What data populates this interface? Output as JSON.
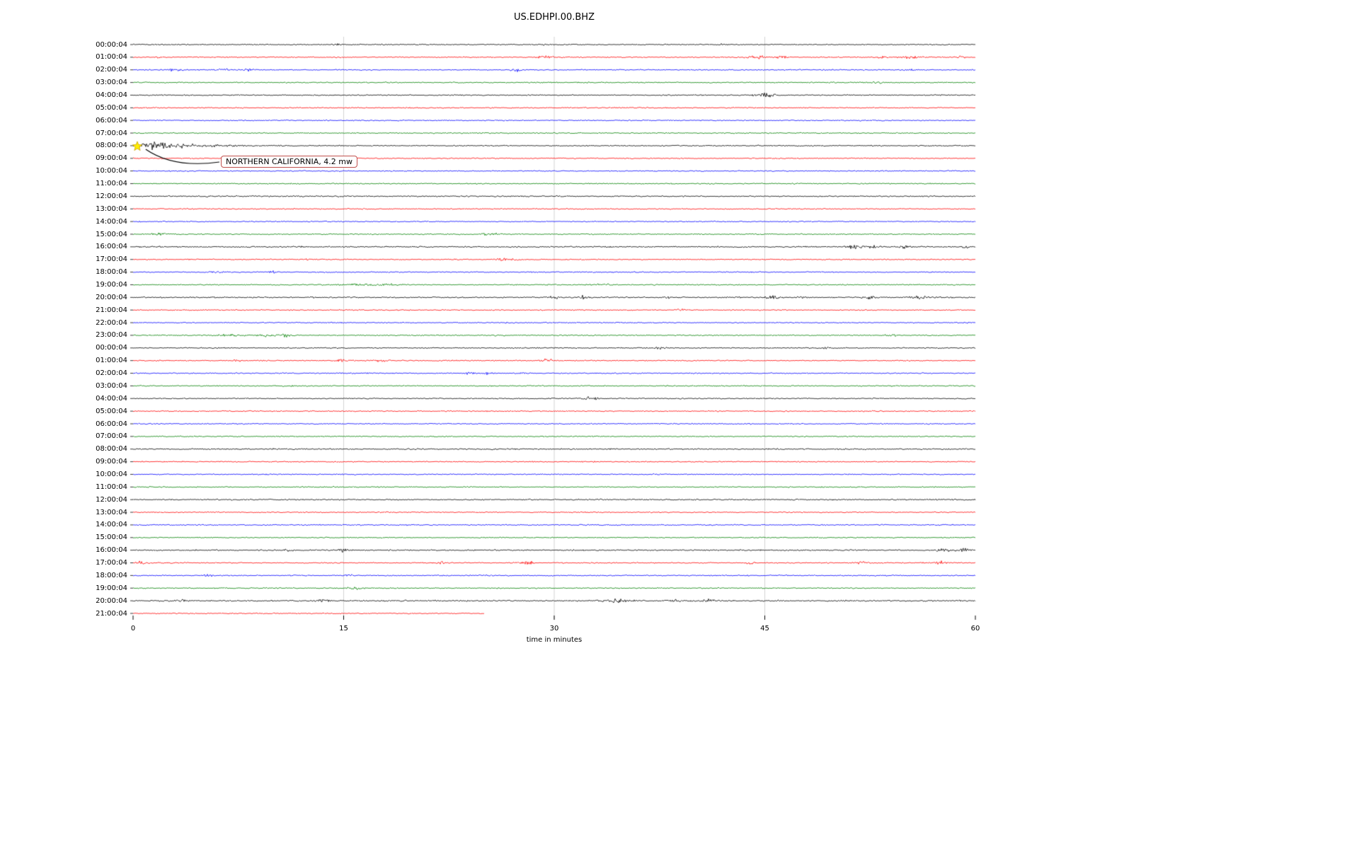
{
  "chart_data": {
    "type": "line",
    "title": "US.EDHPI.00.BHZ",
    "xlabel": "time in minutes",
    "ylabel": "",
    "xlim": [
      0,
      60
    ],
    "x_ticks": [
      "0",
      "15",
      "30",
      "45",
      "60"
    ],
    "x_tick_minutes": [
      0,
      15,
      30,
      45,
      60
    ],
    "grid_minutes": [
      15,
      30,
      45
    ],
    "grid_color": "#c8c8c8",
    "trace_color_cycle": [
      "#000000",
      "#ff0000",
      "#0000ff",
      "#008000"
    ],
    "annotation": {
      "text": "NORTHERN CALIFORNIA, 4.2 mw",
      "row_label": "08:00:04",
      "row_index": 8,
      "minute": 0.7,
      "marker_color": "#ffee00",
      "box_border_color": "#c0504d",
      "arrow_color": "#000000"
    },
    "rows": [
      {
        "label": "00:00:04",
        "events": [
          [
            14.5,
            1.2,
            0.3
          ],
          [
            29.5,
            1.2,
            0.3
          ],
          [
            42,
            1.0,
            0.3
          ]
        ]
      },
      {
        "label": "01:00:04",
        "events": [
          [
            2,
            1.5,
            0.3
          ],
          [
            29.3,
            2.8,
            0.5
          ],
          [
            44.5,
            2.6,
            0.7
          ],
          [
            46.2,
            2.2,
            0.4
          ],
          [
            53.5,
            2.2,
            0.5
          ],
          [
            55.5,
            2.2,
            0.8
          ],
          [
            59,
            1.8,
            0.4
          ]
        ]
      },
      {
        "label": "02:00:04",
        "events": [
          [
            3,
            2.2,
            0.5
          ],
          [
            6.5,
            1.8,
            0.4
          ],
          [
            8.2,
            2.2,
            0.4
          ],
          [
            27.3,
            2.8,
            0.4
          ],
          [
            49.5,
            1.8,
            0.5
          ],
          [
            55.3,
            1.8,
            0.4
          ]
        ]
      },
      {
        "label": "03:00:04",
        "events": [
          [
            53,
            1.4,
            0.5
          ]
        ]
      },
      {
        "label": "04:00:04",
        "events": [
          [
            45,
            3.8,
            0.7
          ]
        ]
      },
      {
        "label": "05:00:04",
        "events": []
      },
      {
        "label": "06:00:04",
        "events": []
      },
      {
        "label": "07:00:04",
        "events": []
      },
      {
        "label": "08:00:04",
        "events": [
          [
            0.7,
            8.5,
            1.5,
            2
          ],
          [
            2.5,
            2.5,
            4.0
          ]
        ]
      },
      {
        "label": "09:00:04",
        "events": []
      },
      {
        "label": "10:00:04",
        "events": []
      },
      {
        "label": "11:00:04",
        "events": []
      },
      {
        "label": "12:00:04",
        "base": 1.3,
        "events": []
      },
      {
        "label": "13:00:04",
        "events": []
      },
      {
        "label": "14:00:04",
        "events": []
      },
      {
        "label": "15:00:04",
        "events": [
          [
            2,
            1.8,
            0.5
          ],
          [
            25.5,
            2.2,
            0.6
          ]
        ]
      },
      {
        "label": "16:00:04",
        "base": 1.3,
        "events": [
          [
            51.5,
            3.6,
            0.6
          ],
          [
            53,
            2.8,
            0.5
          ],
          [
            55,
            2.8,
            0.4
          ],
          [
            59.3,
            2.0,
            0.3
          ]
        ]
      },
      {
        "label": "17:00:04",
        "events": [
          [
            12.3,
            1.8,
            0.3
          ],
          [
            26.3,
            3.2,
            0.5
          ],
          [
            27.3,
            2.2,
            0.3
          ]
        ]
      },
      {
        "label": "18:00:04",
        "events": [
          [
            6,
            1.8,
            0.5
          ],
          [
            10,
            1.6,
            0.4
          ]
        ]
      },
      {
        "label": "19:00:04",
        "events": [
          [
            17,
            1.6,
            2.0
          ],
          [
            33.5,
            2.6,
            0.4
          ]
        ]
      },
      {
        "label": "20:00:04",
        "base": 1.3,
        "events": [
          [
            30,
            2.8,
            0.4
          ],
          [
            32,
            3.2,
            0.3
          ],
          [
            38,
            1.8,
            0.3
          ],
          [
            45.5,
            2.8,
            0.5
          ],
          [
            47.5,
            2.2,
            0.4
          ],
          [
            52.5,
            3.2,
            0.5
          ],
          [
            56,
            2.8,
            0.6
          ]
        ]
      },
      {
        "label": "21:00:04",
        "events": [
          [
            32,
            2.2,
            0.3
          ],
          [
            39,
            1.8,
            0.4
          ]
        ]
      },
      {
        "label": "22:00:04",
        "events": []
      },
      {
        "label": "23:00:04",
        "events": [
          [
            7,
            2.2,
            0.8
          ],
          [
            9.5,
            2.6,
            0.6
          ],
          [
            11,
            3.0,
            0.4
          ],
          [
            26,
            1.6,
            0.4
          ],
          [
            54,
            1.8,
            0.4
          ]
        ]
      },
      {
        "label": "00:00:04",
        "events": [
          [
            37.5,
            1.8,
            0.4
          ],
          [
            49.5,
            2.2,
            0.4
          ]
        ]
      },
      {
        "label": "01:00:04",
        "events": [
          [
            7.5,
            1.6,
            0.5
          ],
          [
            15,
            1.8,
            0.5
          ],
          [
            17.5,
            1.8,
            0.4
          ],
          [
            29.5,
            2.8,
            0.6
          ]
        ]
      },
      {
        "label": "02:00:04",
        "events": [
          [
            24,
            2.8,
            0.4
          ],
          [
            25.2,
            2.2,
            0.3
          ],
          [
            28,
            1.6,
            0.4
          ]
        ]
      },
      {
        "label": "03:00:04",
        "events": []
      },
      {
        "label": "04:00:04",
        "events": [
          [
            29.8,
            3.5,
            0.15
          ],
          [
            32.3,
            4.5,
            0.25
          ],
          [
            33,
            2.5,
            0.2
          ]
        ]
      },
      {
        "label": "05:00:04",
        "events": []
      },
      {
        "label": "06:00:04",
        "events": []
      },
      {
        "label": "07:00:04",
        "events": []
      },
      {
        "label": "08:00:04",
        "base": 1.3,
        "events": []
      },
      {
        "label": "09:00:04",
        "events": []
      },
      {
        "label": "10:00:04",
        "events": []
      },
      {
        "label": "11:00:04",
        "events": []
      },
      {
        "label": "12:00:04",
        "base": 1.3,
        "events": []
      },
      {
        "label": "13:00:04",
        "events": []
      },
      {
        "label": "14:00:04",
        "base": 1.2,
        "events": []
      },
      {
        "label": "15:00:04",
        "events": []
      },
      {
        "label": "16:00:04",
        "base": 1.3,
        "events": [
          [
            11,
            1.8,
            0.3
          ],
          [
            15,
            3.2,
            0.4
          ],
          [
            57.8,
            4.0,
            0.5
          ],
          [
            59.2,
            3.2,
            0.4
          ]
        ]
      },
      {
        "label": "17:00:04",
        "events": [
          [
            0.7,
            2.8,
            0.4
          ],
          [
            22,
            2.2,
            0.4
          ],
          [
            28,
            3.2,
            0.5
          ],
          [
            44,
            1.8,
            0.3
          ],
          [
            52,
            2.2,
            0.4
          ],
          [
            57.5,
            2.8,
            0.5
          ]
        ]
      },
      {
        "label": "18:00:04",
        "events": [
          [
            5.5,
            2.2,
            0.4
          ],
          [
            15.5,
            2.2,
            0.4
          ],
          [
            25.5,
            2.2,
            0.3
          ]
        ]
      },
      {
        "label": "19:00:04",
        "events": [
          [
            16,
            2.2,
            0.5
          ]
        ]
      },
      {
        "label": "20:00:04",
        "base": 1.4,
        "events": [
          [
            3.5,
            2.2,
            0.5
          ],
          [
            13.5,
            2.2,
            0.4
          ],
          [
            34.5,
            2.6,
            1.0
          ],
          [
            38.5,
            1.8,
            0.4
          ],
          [
            41,
            2.2,
            0.4
          ]
        ]
      },
      {
        "label": "21:00:04",
        "end": 25,
        "events": []
      }
    ]
  }
}
